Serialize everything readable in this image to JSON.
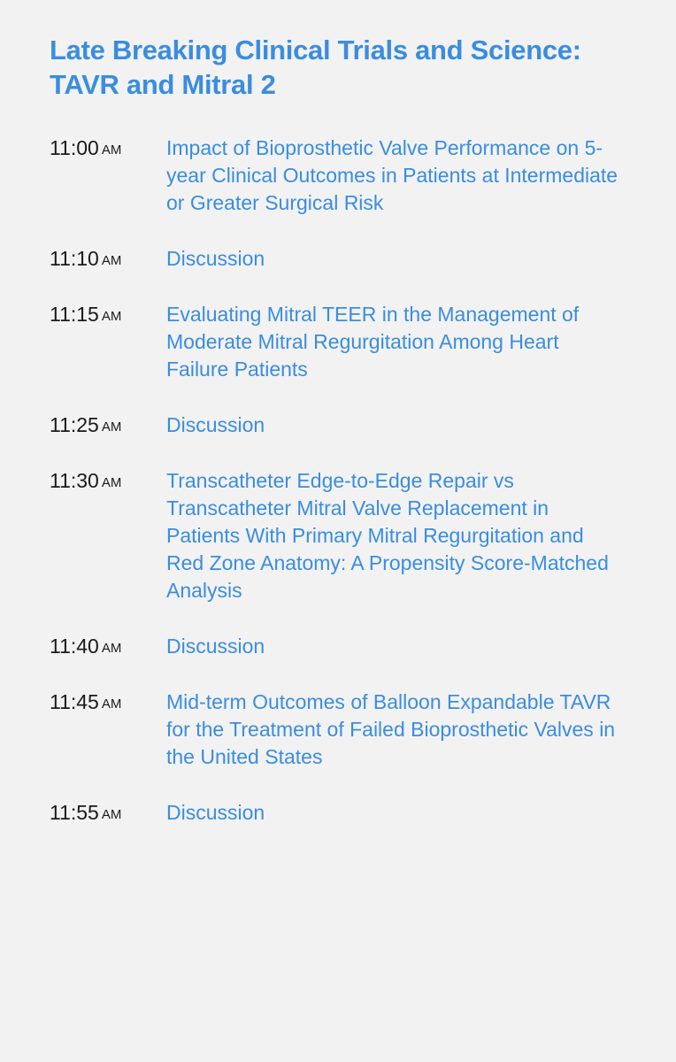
{
  "colors": {
    "background": "#f2f2f2",
    "link": "#3a8de0",
    "text_dark": "#1a1a1a"
  },
  "session": {
    "title": "Late Breaking Clinical Trials and Science: TAVR and Mitral 2"
  },
  "schedule": [
    {
      "time": "11:00",
      "ampm": "AM",
      "topic": "Impact of Bioprosthetic Valve Performance on 5-year Clinical Outcomes in Patients at Intermediate or Greater Surgical Risk"
    },
    {
      "time": "11:10",
      "ampm": "AM",
      "topic": "Discussion"
    },
    {
      "time": "11:15",
      "ampm": "AM",
      "topic": "Evaluating Mitral TEER in the Management of Moderate Mitral Regurgitation Among Heart Failure Patients"
    },
    {
      "time": "11:25",
      "ampm": "AM",
      "topic": "Discussion"
    },
    {
      "time": "11:30",
      "ampm": "AM",
      "topic": "Transcatheter Edge-to-Edge Repair vs Transcatheter Mitral Valve Replacement in Patients With Primary Mitral Regurgitation and Red Zone Anatomy: A Propensity Score-Matched Analysis"
    },
    {
      "time": "11:40",
      "ampm": "AM",
      "topic": "Discussion"
    },
    {
      "time": "11:45",
      "ampm": "AM",
      "topic": "Mid-term Outcomes of Balloon Expandable TAVR for the Treatment of Failed Bioprosthetic Valves in the United States"
    },
    {
      "time": "11:55",
      "ampm": "AM",
      "topic": "Discussion"
    }
  ]
}
